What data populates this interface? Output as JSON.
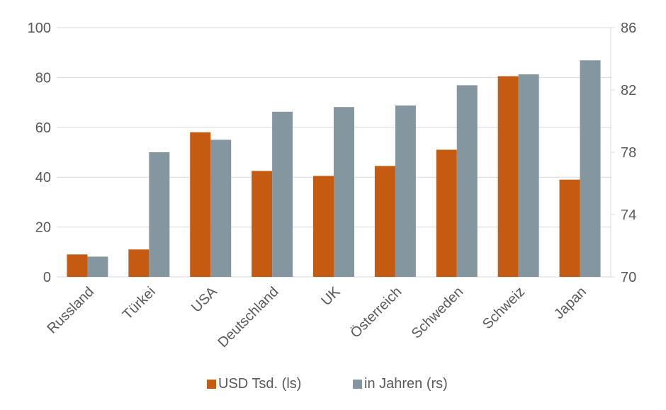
{
  "chart_data": {
    "type": "bar",
    "categories": [
      "Russland",
      "Türkei",
      "USA",
      "Deutschland",
      "UK",
      "Österreich",
      "Schweden",
      "Schweiz",
      "Japan"
    ],
    "series": [
      {
        "name": "USD Tsd. (ls)",
        "axis": "left",
        "color": "#c55a11",
        "values": [
          9,
          11,
          58,
          42.5,
          40.5,
          44.5,
          51,
          80.5,
          39
        ]
      },
      {
        "name": "in Jahren (rs)",
        "axis": "right",
        "color": "#8497a0",
        "values": [
          71.3,
          78,
          78.8,
          80.6,
          80.9,
          81,
          82.3,
          83,
          83.9
        ]
      }
    ],
    "y_left": {
      "min": 0,
      "max": 100,
      "ticks": [
        0,
        20,
        40,
        60,
        80,
        100
      ]
    },
    "y_right": {
      "min": 70,
      "max": 86,
      "ticks": [
        70,
        74,
        78,
        82,
        86
      ]
    },
    "grid": true,
    "legend_position": "bottom",
    "colors": {
      "axis_text": "#595959",
      "gridline": "#d9d9d9"
    }
  }
}
